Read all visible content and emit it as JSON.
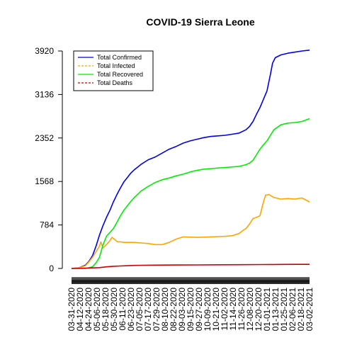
{
  "chart_data": {
    "type": "line",
    "title": "COVID-19 Sierra Leone",
    "xlabel": "",
    "ylabel": "",
    "ylim": [
      0,
      3920
    ],
    "yticks": [
      0,
      784,
      1568,
      2352,
      3136,
      3920
    ],
    "xtick_labels": [
      "03-31-2020",
      "04-12-2020",
      "04-24-2020",
      "05-06-2020",
      "05-18-2020",
      "05-30-2020",
      "06-11-2020",
      "06-23-2020",
      "07-05-2020",
      "07-17-2020",
      "07-29-2020",
      "08-10-2020",
      "08-22-2020",
      "09-03-2020",
      "09-15-2020",
      "09-27-2020",
      "10-09-2020",
      "10-21-2020",
      "11-02-2020",
      "11-14-2020",
      "11-26-2020",
      "12-08-2020",
      "12-20-2020",
      "01-01-2021",
      "01-13-2021",
      "01-25-2021",
      "02-06-2021",
      "02-18-2021",
      "03-02-2021"
    ],
    "x_day_range": [
      0,
      341
    ],
    "legend": {
      "position": "top-left",
      "box": true
    },
    "series": [
      {
        "name": "Total Confirmed",
        "color": "#0000ee",
        "dash": "solid",
        "points": [
          [
            0,
            0
          ],
          [
            10,
            10
          ],
          [
            20,
            60
          ],
          [
            25,
            130
          ],
          [
            30,
            230
          ],
          [
            35,
            400
          ],
          [
            40,
            600
          ],
          [
            45,
            770
          ],
          [
            50,
            920
          ],
          [
            55,
            1050
          ],
          [
            60,
            1200
          ],
          [
            65,
            1330
          ],
          [
            70,
            1450
          ],
          [
            75,
            1560
          ],
          [
            80,
            1640
          ],
          [
            85,
            1720
          ],
          [
            90,
            1780
          ],
          [
            95,
            1830
          ],
          [
            100,
            1880
          ],
          [
            110,
            1960
          ],
          [
            120,
            2010
          ],
          [
            130,
            2080
          ],
          [
            140,
            2150
          ],
          [
            150,
            2200
          ],
          [
            160,
            2260
          ],
          [
            170,
            2300
          ],
          [
            180,
            2330
          ],
          [
            190,
            2360
          ],
          [
            200,
            2380
          ],
          [
            210,
            2390
          ],
          [
            220,
            2400
          ],
          [
            230,
            2420
          ],
          [
            240,
            2440
          ],
          [
            250,
            2500
          ],
          [
            255,
            2560
          ],
          [
            260,
            2650
          ],
          [
            265,
            2780
          ],
          [
            270,
            2900
          ],
          [
            275,
            3050
          ],
          [
            280,
            3200
          ],
          [
            285,
            3500
          ],
          [
            288,
            3700
          ],
          [
            292,
            3800
          ],
          [
            300,
            3850
          ],
          [
            310,
            3880
          ],
          [
            320,
            3900
          ],
          [
            330,
            3920
          ],
          [
            341,
            3935
          ]
        ]
      },
      {
        "name": "Total Infected",
        "color": "#ffa500",
        "dash": "dashed",
        "points": [
          [
            0,
            0
          ],
          [
            10,
            10
          ],
          [
            20,
            50
          ],
          [
            25,
            120
          ],
          [
            30,
            200
          ],
          [
            35,
            300
          ],
          [
            40,
            400
          ],
          [
            42,
            480
          ],
          [
            45,
            370
          ],
          [
            50,
            430
          ],
          [
            55,
            500
          ],
          [
            58,
            560
          ],
          [
            62,
            520
          ],
          [
            66,
            480
          ],
          [
            70,
            480
          ],
          [
            75,
            470
          ],
          [
            80,
            470
          ],
          [
            90,
            470
          ],
          [
            100,
            460
          ],
          [
            110,
            450
          ],
          [
            120,
            430
          ],
          [
            130,
            430
          ],
          [
            140,
            470
          ],
          [
            150,
            530
          ],
          [
            160,
            570
          ],
          [
            170,
            565
          ],
          [
            180,
            560
          ],
          [
            190,
            565
          ],
          [
            200,
            570
          ],
          [
            210,
            575
          ],
          [
            220,
            580
          ],
          [
            230,
            590
          ],
          [
            240,
            630
          ],
          [
            245,
            680
          ],
          [
            250,
            720
          ],
          [
            255,
            800
          ],
          [
            260,
            900
          ],
          [
            265,
            920
          ],
          [
            270,
            950
          ],
          [
            275,
            1200
          ],
          [
            278,
            1320
          ],
          [
            283,
            1330
          ],
          [
            290,
            1280
          ],
          [
            300,
            1250
          ],
          [
            310,
            1260
          ],
          [
            320,
            1250
          ],
          [
            330,
            1270
          ],
          [
            341,
            1200
          ]
        ]
      },
      {
        "name": "Total Recovered",
        "color": "#00ee00",
        "dash": "solid",
        "points": [
          [
            0,
            0
          ],
          [
            10,
            0
          ],
          [
            20,
            0
          ],
          [
            30,
            30
          ],
          [
            35,
            100
          ],
          [
            40,
            200
          ],
          [
            45,
            420
          ],
          [
            50,
            580
          ],
          [
            55,
            650
          ],
          [
            60,
            720
          ],
          [
            65,
            830
          ],
          [
            70,
            950
          ],
          [
            75,
            1050
          ],
          [
            80,
            1130
          ],
          [
            85,
            1210
          ],
          [
            90,
            1280
          ],
          [
            95,
            1340
          ],
          [
            100,
            1400
          ],
          [
            110,
            1480
          ],
          [
            120,
            1550
          ],
          [
            130,
            1600
          ],
          [
            140,
            1630
          ],
          [
            150,
            1670
          ],
          [
            160,
            1700
          ],
          [
            170,
            1740
          ],
          [
            180,
            1770
          ],
          [
            190,
            1790
          ],
          [
            200,
            1800
          ],
          [
            210,
            1810
          ],
          [
            220,
            1820
          ],
          [
            230,
            1830
          ],
          [
            240,
            1840
          ],
          [
            250,
            1870
          ],
          [
            255,
            1900
          ],
          [
            260,
            1950
          ],
          [
            265,
            2050
          ],
          [
            270,
            2150
          ],
          [
            275,
            2230
          ],
          [
            280,
            2300
          ],
          [
            285,
            2400
          ],
          [
            290,
            2500
          ],
          [
            300,
            2590
          ],
          [
            310,
            2620
          ],
          [
            320,
            2630
          ],
          [
            330,
            2650
          ],
          [
            341,
            2700
          ]
        ]
      },
      {
        "name": "Total Deaths",
        "color": "#cd0000",
        "dash": "dashed",
        "points": [
          [
            0,
            0
          ],
          [
            20,
            5
          ],
          [
            30,
            10
          ],
          [
            40,
            15
          ],
          [
            50,
            30
          ],
          [
            60,
            40
          ],
          [
            70,
            45
          ],
          [
            80,
            50
          ],
          [
            90,
            55
          ],
          [
            100,
            58
          ],
          [
            120,
            60
          ],
          [
            150,
            62
          ],
          [
            180,
            64
          ],
          [
            210,
            66
          ],
          [
            240,
            68
          ],
          [
            270,
            70
          ],
          [
            290,
            72
          ],
          [
            300,
            73
          ],
          [
            320,
            74
          ],
          [
            341,
            74
          ]
        ]
      }
    ]
  }
}
